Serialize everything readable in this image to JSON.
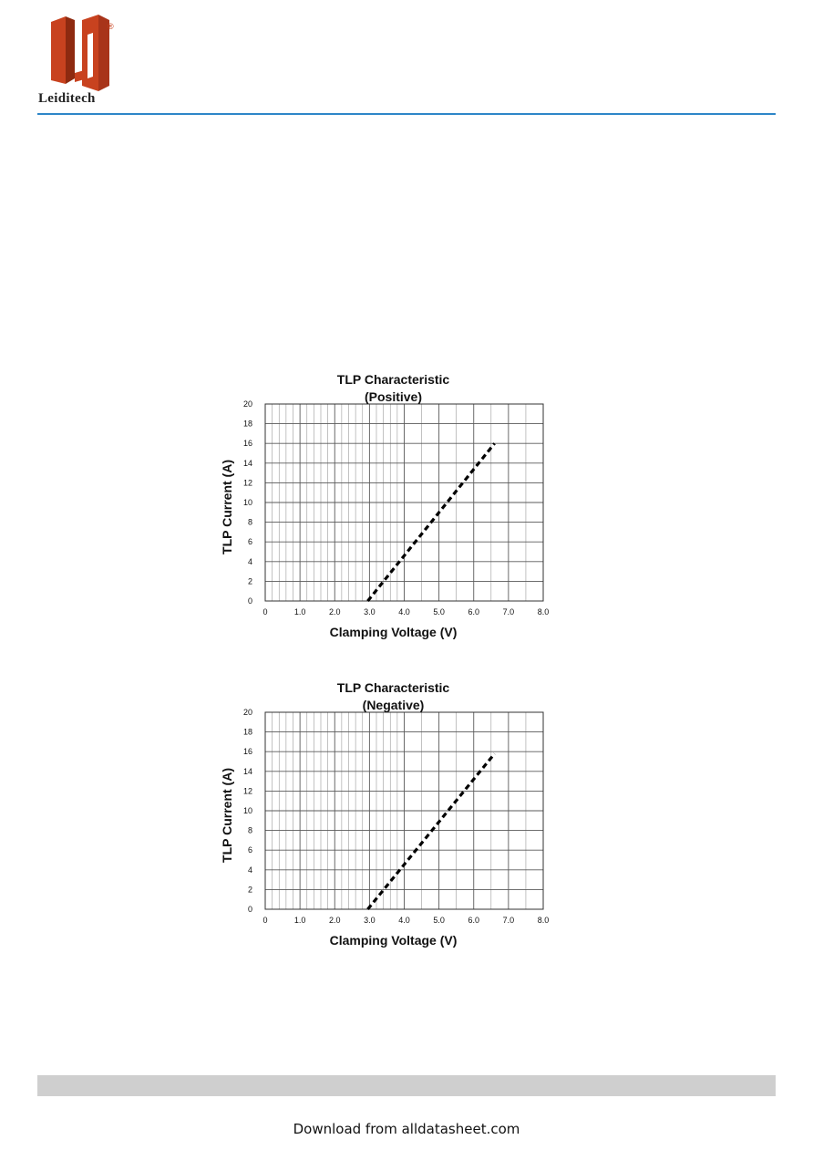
{
  "brand": {
    "name": "Leiditech",
    "registered_mark": "®",
    "logo_colors": {
      "primary": "#c8421f",
      "dark": "#8e2a10"
    },
    "rule_color": "#2e86c8"
  },
  "chart_data": [
    {
      "type": "line",
      "title": "TLP Characteristic",
      "subtitle": "(Positive)",
      "xlabel": "Clamping Voltage (V)",
      "ylabel": "TLP Current (A)",
      "xlim": [
        0,
        8
      ],
      "ylim": [
        0,
        20
      ],
      "x_ticks": [
        "0",
        "1.0",
        "2.0",
        "3.0",
        "4.0",
        "5.0",
        "6.0",
        "7.0",
        "8.0"
      ],
      "y_ticks": [
        "0",
        "2",
        "4",
        "6",
        "8",
        "10",
        "12",
        "14",
        "16",
        "18",
        "20"
      ],
      "grid": true,
      "series": [
        {
          "style": "dashed",
          "color": "#000000",
          "x": [
            2.95,
            6.6
          ],
          "y": [
            0,
            16
          ]
        }
      ]
    },
    {
      "type": "line",
      "title": "TLP Characteristic",
      "subtitle": "(Negative)",
      "xlabel": "Clamping Voltage (V)",
      "ylabel": "TLP Current (A)",
      "xlim": [
        0,
        8
      ],
      "ylim": [
        0,
        20
      ],
      "x_ticks": [
        "0",
        "1.0",
        "2.0",
        "3.0",
        "4.0",
        "5.0",
        "6.0",
        "7.0",
        "8.0"
      ],
      "y_ticks": [
        "0",
        "2",
        "4",
        "6",
        "8",
        "10",
        "12",
        "14",
        "16",
        "18",
        "20"
      ],
      "grid": true,
      "series": [
        {
          "style": "dashed",
          "color": "#000000",
          "x": [
            2.95,
            6.6
          ],
          "y": [
            0,
            15.8
          ]
        }
      ]
    }
  ],
  "footer": {
    "bar_color": "#cfcfcf",
    "download_text": "Download from alldatasheet.com"
  }
}
